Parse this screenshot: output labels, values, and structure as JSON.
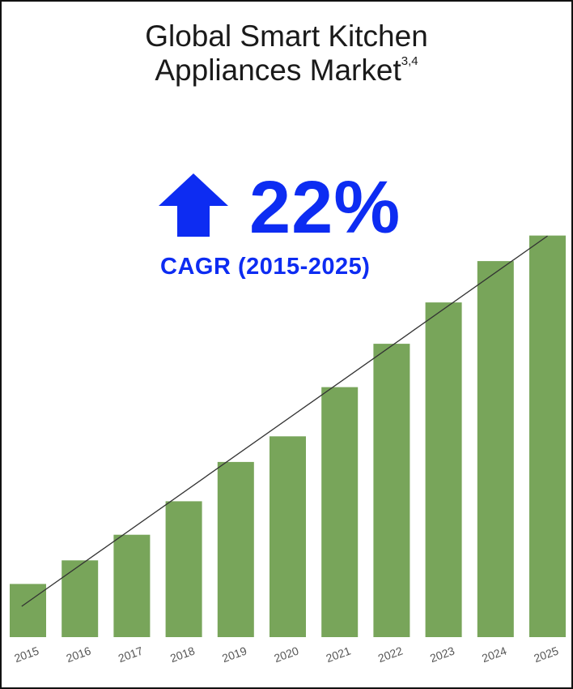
{
  "title": {
    "line1": "Global Smart Kitchen",
    "line2": "Appliances Market",
    "superscript": "3,4"
  },
  "kpi": {
    "icon": "up-arrow-icon",
    "value": "22%",
    "label": "CAGR (2015-2025)"
  },
  "colors": {
    "bar": "#78a55a",
    "accent": "#0d2cf2",
    "trendline": "#333333"
  },
  "chart_data": {
    "type": "bar",
    "categories": [
      "2015",
      "2016",
      "2017",
      "2018",
      "2019",
      "2020",
      "2021",
      "2022",
      "2023",
      "2024",
      "2025"
    ],
    "values": [
      13.5,
      19.5,
      26,
      34.5,
      44.5,
      51,
      63.5,
      74.5,
      85,
      95.5,
      102
    ],
    "ylim": [
      0,
      105
    ],
    "trendline": true,
    "grid": false,
    "title": "Global Smart Kitchen Appliances Market"
  }
}
